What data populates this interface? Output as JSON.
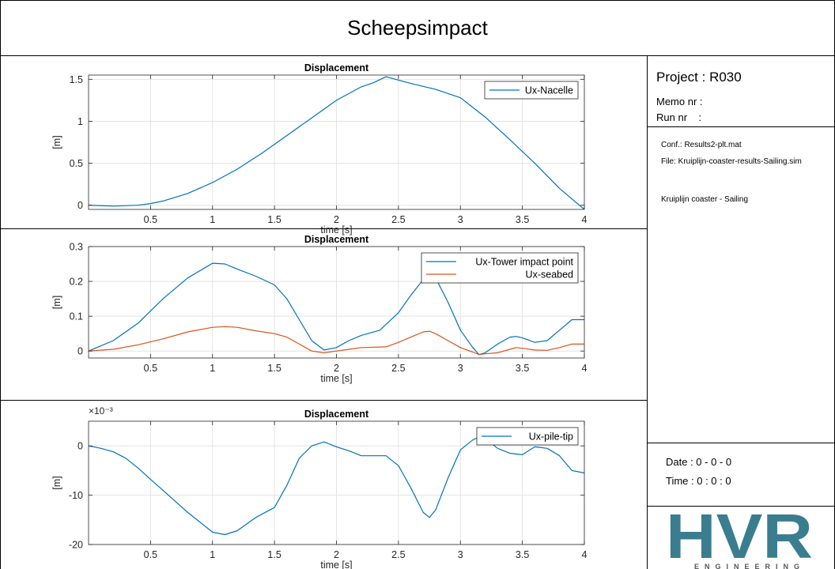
{
  "page": {
    "title": "Scheepsimpact"
  },
  "info": {
    "project": "Project : R030",
    "memo": "Memo nr :",
    "run": "Run nr    :",
    "conf": "Conf.: Results2-plt.mat",
    "file": "File: Kruiplijn-coaster-results-Sailing.sim",
    "description": "Kruiplijn coaster - Sailing",
    "date": "Date : 0 - 0 - 0",
    "time": "Time : 0 : 0 : 0"
  },
  "logo": {
    "letters": "HVR",
    "subtitle": "ENGINEERING",
    "color": "#3a7d8f"
  },
  "colors": {
    "series1": "#0072BD",
    "series2": "#D95319",
    "grid": "#e3e3e3"
  },
  "chart_data": [
    {
      "type": "line",
      "title": "Displacement",
      "xlabel": "time [s]",
      "ylabel": "[m]",
      "xlim": [
        0,
        4
      ],
      "ylim": [
        -0.05,
        1.55
      ],
      "xticks": [
        0.5,
        1,
        1.5,
        2,
        2.5,
        3,
        3.5,
        4
      ],
      "xtick_labels": [
        "0.5",
        "1",
        "1.5",
        "2",
        "2.5",
        "3",
        "3.5",
        "4"
      ],
      "yticks": [
        0,
        0.5,
        1,
        1.5
      ],
      "ytick_labels": [
        "0",
        "0.5",
        "1",
        "1.5"
      ],
      "y_exponent": "",
      "grid": true,
      "legend": "top-right",
      "series": [
        {
          "name": "Ux-Nacelle",
          "x": [
            0,
            0.2,
            0.4,
            0.5,
            0.6,
            0.8,
            1.0,
            1.2,
            1.4,
            1.6,
            1.8,
            2.0,
            2.2,
            2.3,
            2.4,
            2.6,
            2.8,
            3.0,
            3.2,
            3.4,
            3.6,
            3.8,
            4.0
          ],
          "y": [
            0.0,
            -0.01,
            0.0,
            0.02,
            0.05,
            0.14,
            0.27,
            0.43,
            0.62,
            0.83,
            1.04,
            1.25,
            1.41,
            1.46,
            1.53,
            1.45,
            1.38,
            1.28,
            1.05,
            0.78,
            0.5,
            0.2,
            -0.05
          ]
        }
      ]
    },
    {
      "type": "line",
      "title": "Displacement",
      "xlabel": "time [s]",
      "ylabel": "[m]",
      "xlim": [
        0,
        4
      ],
      "ylim": [
        -0.02,
        0.3
      ],
      "xticks": [
        0.5,
        1,
        1.5,
        2,
        2.5,
        3,
        3.5,
        4
      ],
      "xtick_labels": [
        "0.5",
        "1",
        "1.5",
        "2",
        "2.5",
        "3",
        "3.5",
        "4"
      ],
      "yticks": [
        0,
        0.1,
        0.2,
        0.3
      ],
      "ytick_labels": [
        "0",
        "0.1",
        "0.2",
        "0.3"
      ],
      "y_exponent": "",
      "grid": true,
      "legend": "top-right",
      "series": [
        {
          "name": "Ux-Tower impact point",
          "x": [
            0,
            0.2,
            0.4,
            0.6,
            0.8,
            1.0,
            1.1,
            1.2,
            1.35,
            1.5,
            1.6,
            1.7,
            1.8,
            1.9,
            2.0,
            2.1,
            2.2,
            2.35,
            2.5,
            2.6,
            2.7,
            2.75,
            2.8,
            2.9,
            3.0,
            3.1,
            3.15,
            3.2,
            3.3,
            3.4,
            3.45,
            3.5,
            3.6,
            3.7,
            3.8,
            3.9,
            4.0
          ],
          "y": [
            0.0,
            0.03,
            0.08,
            0.15,
            0.21,
            0.252,
            0.25,
            0.235,
            0.215,
            0.19,
            0.15,
            0.09,
            0.03,
            0.003,
            0.01,
            0.03,
            0.045,
            0.06,
            0.11,
            0.16,
            0.205,
            0.22,
            0.21,
            0.14,
            0.06,
            0.01,
            -0.01,
            -0.005,
            0.02,
            0.04,
            0.042,
            0.038,
            0.025,
            0.03,
            0.06,
            0.09,
            0.09
          ]
        },
        {
          "name": "Ux-seabed",
          "x": [
            0,
            0.2,
            0.4,
            0.6,
            0.8,
            1.0,
            1.1,
            1.2,
            1.35,
            1.5,
            1.6,
            1.7,
            1.8,
            1.9,
            2.0,
            2.1,
            2.2,
            2.4,
            2.5,
            2.6,
            2.7,
            2.75,
            2.8,
            2.9,
            3.0,
            3.1,
            3.15,
            3.2,
            3.3,
            3.4,
            3.45,
            3.5,
            3.6,
            3.7,
            3.8,
            3.9,
            4.0
          ],
          "y": [
            0.0,
            0.005,
            0.018,
            0.035,
            0.055,
            0.068,
            0.07,
            0.068,
            0.058,
            0.05,
            0.04,
            0.02,
            0.0,
            -0.005,
            0.0,
            0.005,
            0.01,
            0.012,
            0.025,
            0.04,
            0.055,
            0.057,
            0.05,
            0.03,
            0.01,
            -0.003,
            -0.01,
            -0.008,
            -0.005,
            0.005,
            0.01,
            0.008,
            0.003,
            0.002,
            0.01,
            0.02,
            0.02
          ]
        }
      ]
    },
    {
      "type": "line",
      "title": "Displacement",
      "xlabel": "time [s]",
      "ylabel": "[m]",
      "xlim": [
        0,
        4
      ],
      "ylim": [
        -20,
        5
      ],
      "xticks": [
        0.5,
        1,
        1.5,
        2,
        2.5,
        3,
        3.5,
        4
      ],
      "xtick_labels": [
        "0.5",
        "1",
        "1.5",
        "2",
        "2.5",
        "3",
        "3.5",
        "4"
      ],
      "yticks": [
        -20,
        -10,
        0
      ],
      "ytick_labels": [
        "-20",
        "-10",
        "0"
      ],
      "y_exponent": "×10⁻³",
      "grid": true,
      "legend": "top-right",
      "series": [
        {
          "name": "Ux-pile-tip",
          "x": [
            0,
            0.1,
            0.2,
            0.3,
            0.4,
            0.5,
            0.6,
            0.8,
            1.0,
            1.1,
            1.2,
            1.35,
            1.5,
            1.6,
            1.7,
            1.8,
            1.9,
            2.0,
            2.1,
            2.2,
            2.3,
            2.4,
            2.5,
            2.6,
            2.7,
            2.75,
            2.8,
            2.9,
            3.0,
            3.1,
            3.15,
            3.2,
            3.3,
            3.4,
            3.5,
            3.6,
            3.7,
            3.8,
            3.9,
            4.0
          ],
          "y": [
            0.0,
            -0.5,
            -1.2,
            -2.5,
            -4.5,
            -6.8,
            -9.0,
            -13.5,
            -17.5,
            -18.0,
            -17.2,
            -14.5,
            -12.5,
            -8.0,
            -2.5,
            0.0,
            0.8,
            -0.2,
            -1.0,
            -2.0,
            -2.0,
            -2.0,
            -4.0,
            -8.5,
            -13.5,
            -14.5,
            -13.0,
            -6.5,
            -0.8,
            1.2,
            1.8,
            1.5,
            -0.5,
            -1.5,
            -1.8,
            -0.2,
            -0.5,
            -2.0,
            -5.0,
            -5.5
          ]
        }
      ]
    }
  ]
}
